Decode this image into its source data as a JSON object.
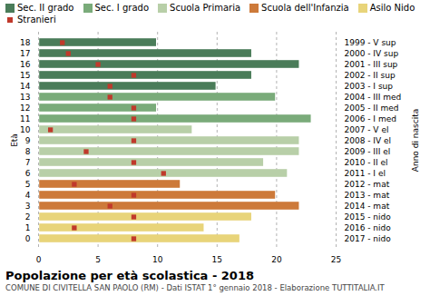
{
  "chart_data": {
    "type": "bar",
    "orientation": "horizontal",
    "title": "Popolazione per età scolastica - 2018",
    "subtitle": "COMUNE DI CIVITELLA SAN PAOLO (RM) - Dati ISTAT 1° gennaio 2018 - Elaborazione TUTTITALIA.IT",
    "ylabel": "Età",
    "y2label": "Anno di nascita",
    "categories": [
      "18",
      "17",
      "16",
      "15",
      "14",
      "13",
      "12",
      "11",
      "10",
      "9",
      "8",
      "7",
      "6",
      "5",
      "4",
      "3",
      "2",
      "1",
      "0"
    ],
    "y2ticks": [
      {
        "value": "18",
        "label": "1999 - V sup"
      },
      {
        "value": "17",
        "label": "2000 - IV sup"
      },
      {
        "value": "16",
        "label": "2001 - III sup"
      },
      {
        "value": "15",
        "label": "2002 - II sup"
      },
      {
        "value": "14",
        "label": "2003 - I sup"
      },
      {
        "value": "13",
        "label": "2004 - III med"
      },
      {
        "value": "12",
        "label": "2005 - II med"
      },
      {
        "value": "11",
        "label": "2006 - I med"
      },
      {
        "value": "10",
        "label": "2007 - V el"
      },
      {
        "value": "9",
        "label": "2008 - IV el"
      },
      {
        "value": "8",
        "label": "2009 - III el"
      },
      {
        "value": "7",
        "label": "2010 - II el"
      },
      {
        "value": "6",
        "label": "2011 - I el"
      },
      {
        "value": "5",
        "label": "2012 - mat"
      },
      {
        "value": "4",
        "label": "2013 - mat"
      },
      {
        "value": "3",
        "label": "2014 - mat"
      },
      {
        "value": "2",
        "label": "2015 - nido"
      },
      {
        "value": "1",
        "label": "2016 - nido"
      },
      {
        "value": "0",
        "label": "2017 - nido"
      }
    ],
    "series": [
      {
        "name": "Sec. II grado",
        "type": "bar",
        "color": "#4a7c59",
        "values": [
          10,
          18,
          22,
          18,
          15,
          null,
          null,
          null,
          null,
          null,
          null,
          null,
          null,
          null,
          null,
          null,
          null,
          null,
          null
        ]
      },
      {
        "name": "Sec. I grado",
        "type": "bar",
        "color": "#7aab7a",
        "values": [
          null,
          null,
          null,
          null,
          null,
          20,
          10,
          23,
          null,
          null,
          null,
          null,
          null,
          null,
          null,
          null,
          null,
          null,
          null
        ]
      },
      {
        "name": "Scuola Primaria",
        "type": "bar",
        "color": "#b8cfa8",
        "values": [
          null,
          null,
          null,
          null,
          null,
          null,
          null,
          null,
          13,
          22,
          22,
          19,
          21,
          null,
          null,
          null,
          null,
          null,
          null
        ]
      },
      {
        "name": "Scuola dell'Infanzia",
        "type": "bar",
        "color": "#cd7a3a",
        "values": [
          null,
          null,
          null,
          null,
          null,
          null,
          null,
          null,
          null,
          null,
          null,
          null,
          null,
          12,
          20,
          22,
          null,
          null,
          null
        ]
      },
      {
        "name": "Asilo Nido",
        "type": "bar",
        "color": "#e8d47a",
        "values": [
          null,
          null,
          null,
          null,
          null,
          null,
          null,
          null,
          null,
          null,
          null,
          null,
          null,
          null,
          null,
          null,
          18,
          14,
          17
        ]
      },
      {
        "name": "Stranieri",
        "type": "scatter",
        "marker": "square",
        "color": "#c0392b",
        "values": [
          2,
          2.5,
          5,
          8,
          6,
          6,
          8,
          8,
          1,
          8,
          4,
          8,
          10.5,
          3,
          8,
          6,
          8,
          3,
          8
        ]
      }
    ],
    "xlim": [
      0,
      25
    ],
    "xticks": [
      0,
      5,
      10,
      15,
      20,
      25
    ],
    "grid": true,
    "legend": "top"
  }
}
